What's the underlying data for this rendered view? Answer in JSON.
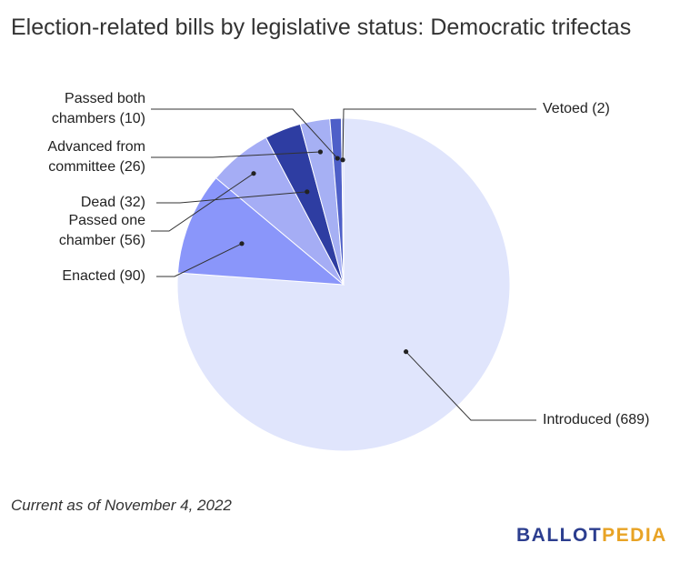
{
  "title": "Election-related bills by legislative status: Democratic trifectas",
  "footnote": "Current as of November 4, 2022",
  "logo": {
    "part1": "BALLOT",
    "part2": "PEDIA"
  },
  "colors": {
    "slice_colors": [
      "#e0e5fc",
      "#8a96fa",
      "#a5adf5",
      "#2e3da2",
      "#a6b0f4",
      "#4e5fc8",
      "#c7cdf7"
    ]
  },
  "chart_data": {
    "type": "pie",
    "title": "Election-related bills by legislative status: Democratic trifectas",
    "slices": [
      {
        "label": "Introduced",
        "value": 689,
        "label_lines": [
          "Introduced (689)"
        ]
      },
      {
        "label": "Enacted",
        "value": 90,
        "label_lines": [
          "Enacted (90)"
        ]
      },
      {
        "label": "Passed one chamber",
        "value": 56,
        "label_lines": [
          "Passed one",
          "chamber (56)"
        ]
      },
      {
        "label": "Dead",
        "value": 32,
        "label_lines": [
          "Dead (32)"
        ]
      },
      {
        "label": "Advanced from committee",
        "value": 26,
        "label_lines": [
          "Advanced from",
          "committee (26)"
        ]
      },
      {
        "label": "Passed both chambers",
        "value": 10,
        "label_lines": [
          "Passed both",
          "chambers (10)"
        ]
      },
      {
        "label": "Vetoed",
        "value": 2,
        "label_lines": [
          "Vetoed (2)"
        ]
      }
    ]
  }
}
